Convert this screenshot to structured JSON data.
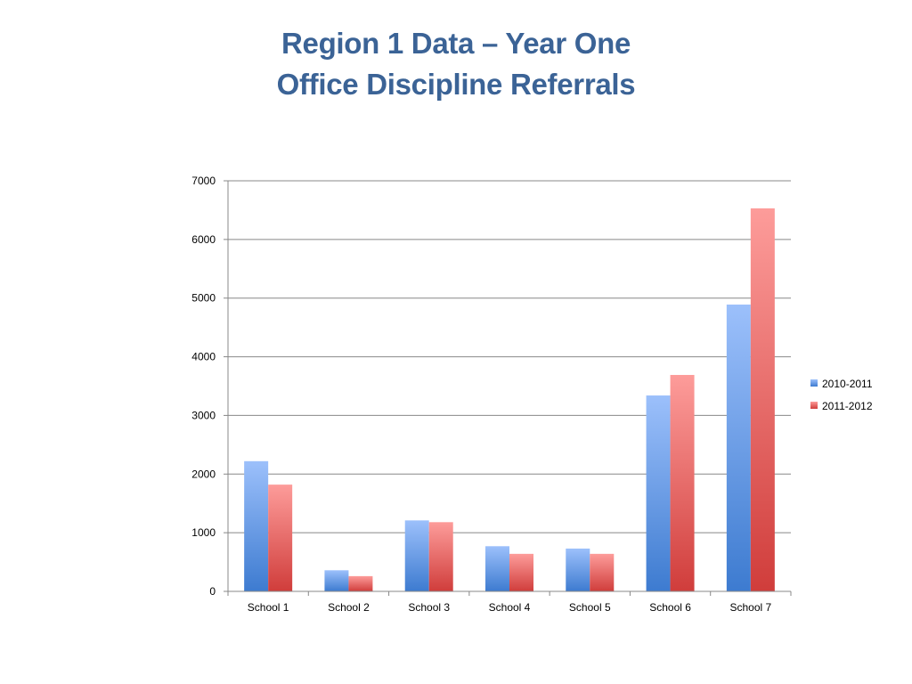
{
  "title": {
    "line1": "Region 1 Data – Year One",
    "line2": "Office Discipline Referrals"
  },
  "colors": {
    "title": "#3b6396",
    "series_2010_top": "#9cc0fb",
    "series_2010_bottom": "#3d7bd0",
    "series_2011_top": "#fd9c9a",
    "series_2011_bottom": "#d03d3b",
    "grid": "#888888"
  },
  "chart_data": {
    "type": "bar",
    "categories": [
      "School 1",
      "School 2",
      "School 3",
      "School 4",
      "School 5",
      "School 6",
      "School 7"
    ],
    "series": [
      {
        "name": "2010-2011",
        "values": [
          2220,
          360,
          1210,
          770,
          730,
          3340,
          4890
        ]
      },
      {
        "name": "2011-2012",
        "values": [
          1820,
          260,
          1180,
          640,
          640,
          3690,
          6530
        ]
      }
    ],
    "y_ticks": [
      "0",
      "1000",
      "2000",
      "3000",
      "4000",
      "5000",
      "6000",
      "7000"
    ],
    "ylim": [
      0,
      7000
    ],
    "grid": true,
    "legend_position": "right",
    "xlabel": "",
    "ylabel": ""
  }
}
